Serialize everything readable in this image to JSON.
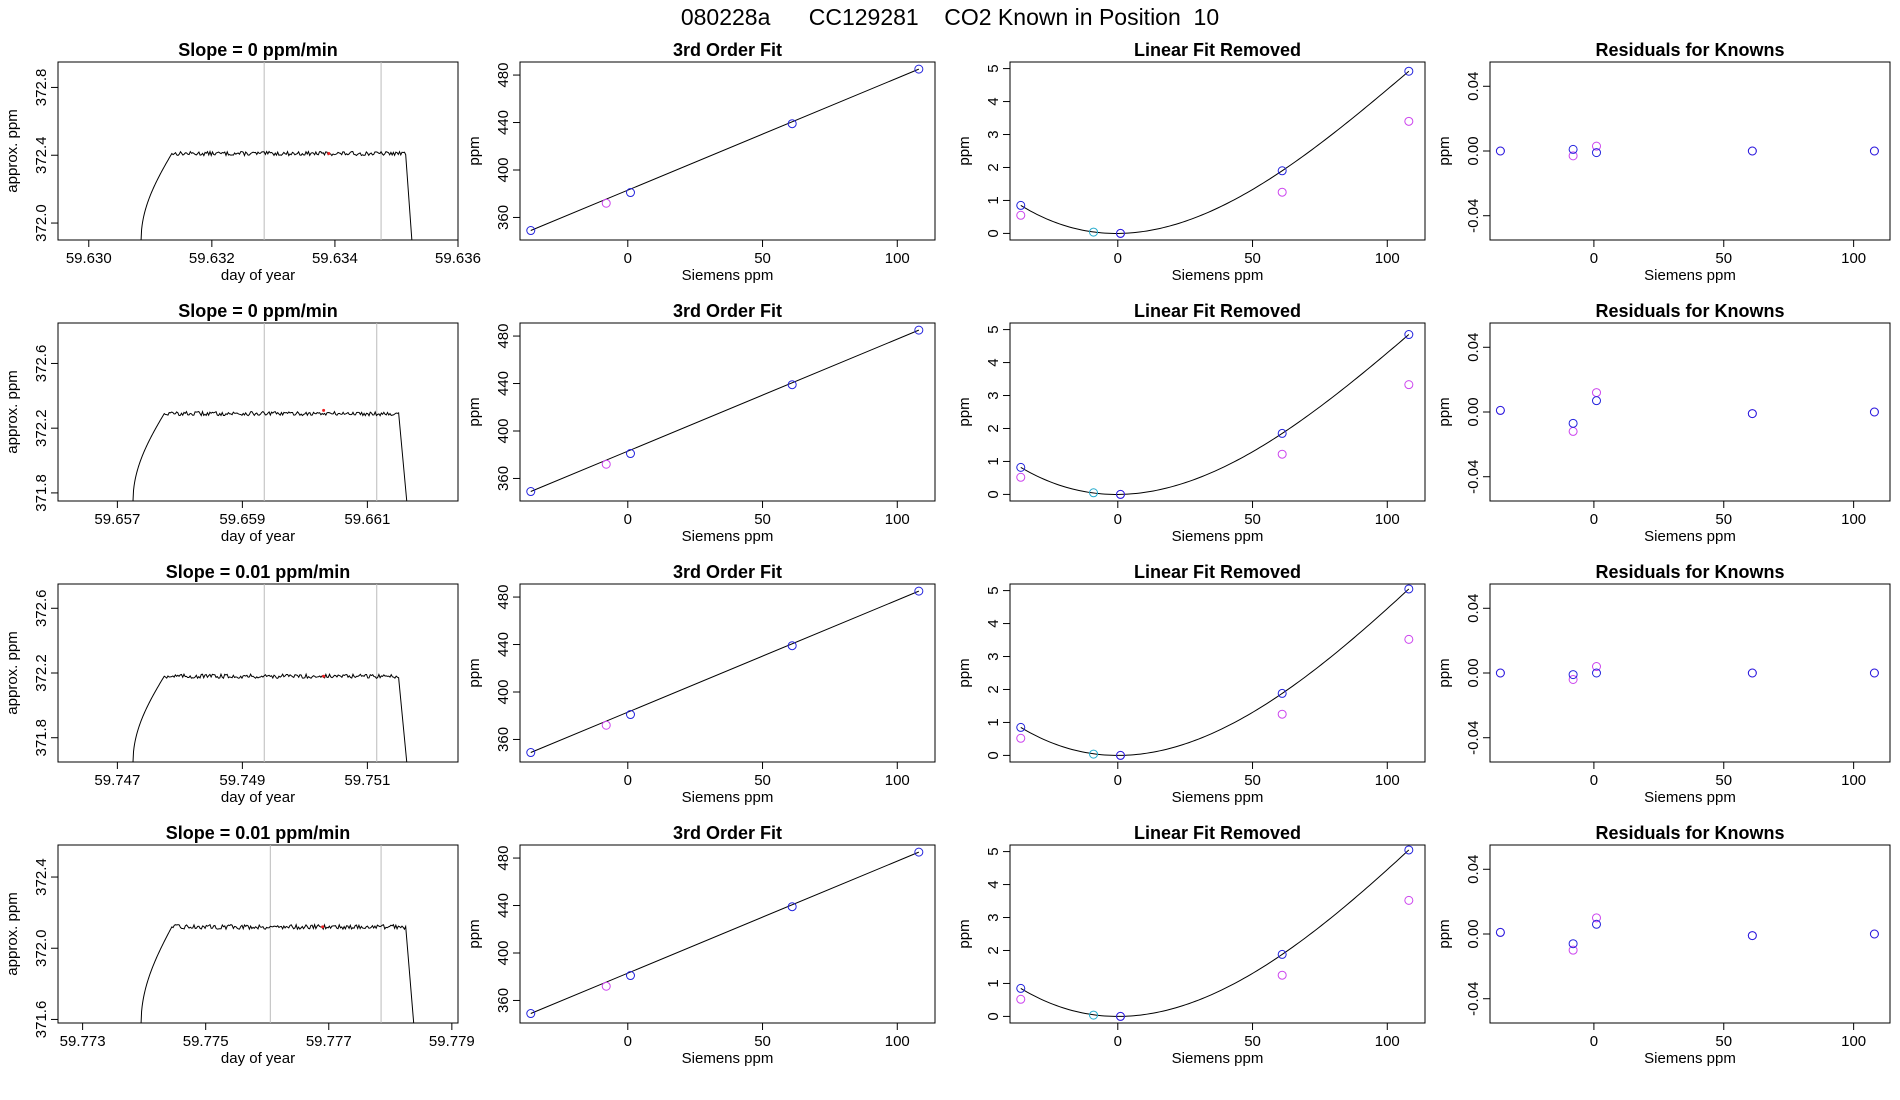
{
  "page_title": "080228a      CC129281    CO2 Known in Position  10",
  "colors": {
    "blue": "#2222dd",
    "magenta": "#cc44ee",
    "cyan": "#22aacc",
    "line": "#000000",
    "vline": "#bbbbbb",
    "red": "#ee2222"
  },
  "chart_data": [
    {
      "type": "line",
      "title": "Slope =  0  ppm/min",
      "xlabel": "day of year",
      "ylabel": "approx. ppm",
      "xlim": [
        59.6295,
        59.636
      ],
      "ylim": [
        371.9,
        372.95
      ],
      "xticks": [
        59.63,
        59.632,
        59.634,
        59.636
      ],
      "xtick_labels": [
        "59.630",
        "59.632",
        "59.634",
        "59.636"
      ],
      "yticks": [
        372.0,
        372.4,
        372.8
      ],
      "ytick_labels": [
        "372.0",
        "372.4",
        "372.8"
      ],
      "vlines": [
        59.63285,
        59.63475
      ],
      "trace": {
        "x_start": 59.63085,
        "x_rise_end": 59.63135,
        "x_drop": 59.63515,
        "x_end": 59.63525,
        "y_low": 371.9,
        "y_level": 372.41,
        "noise": 0.012
      },
      "marker": {
        "x": 59.6339,
        "y": 372.41
      }
    },
    {
      "type": "line",
      "title": "Slope =  0  ppm/min",
      "xlabel": "day of year",
      "ylabel": "approx. ppm",
      "xlim": [
        59.65605,
        59.66245
      ],
      "ylim": [
        371.75,
        372.85
      ],
      "xticks": [
        59.657,
        59.659,
        59.661
      ],
      "xtick_labels": [
        "59.657",
        "59.659",
        "59.661"
      ],
      "yticks": [
        371.8,
        372.2,
        372.6
      ],
      "ytick_labels": [
        "371.8",
        "372.2",
        "372.6"
      ],
      "vlines": [
        59.65935,
        59.66115
      ],
      "trace": {
        "x_start": 59.65725,
        "x_rise_end": 59.65775,
        "x_drop": 59.6615,
        "x_end": 59.66163,
        "y_low": 371.75,
        "y_level": 372.29,
        "noise": 0.013
      },
      "marker": {
        "x": 59.6603,
        "y": 372.31
      }
    },
    {
      "type": "line",
      "title": "Slope =  0.01  ppm/min",
      "xlabel": "day of year",
      "ylabel": "approx. ppm",
      "xlim": [
        59.74605,
        59.75245
      ],
      "ylim": [
        371.65,
        372.75
      ],
      "xticks": [
        59.747,
        59.749,
        59.751
      ],
      "xtick_labels": [
        "59.747",
        "59.749",
        "59.751"
      ],
      "yticks": [
        371.8,
        372.2,
        372.6
      ],
      "ytick_labels": [
        "371.8",
        "372.2",
        "372.6"
      ],
      "vlines": [
        59.74935,
        59.75115
      ],
      "trace": {
        "x_start": 59.74725,
        "x_rise_end": 59.74775,
        "x_drop": 59.7515,
        "x_end": 59.75163,
        "y_low": 371.65,
        "y_level": 372.18,
        "noise": 0.013
      },
      "marker": {
        "x": 59.7503,
        "y": 372.18
      }
    },
    {
      "type": "line",
      "title": "Slope =  0.01  ppm/min",
      "xlabel": "day of year",
      "ylabel": "approx. ppm",
      "xlim": [
        59.7726,
        59.7791
      ],
      "ylim": [
        371.58,
        372.58
      ],
      "xticks": [
        59.773,
        59.775,
        59.777,
        59.779
      ],
      "xtick_labels": [
        "59.773",
        "59.775",
        "59.777",
        "59.779"
      ],
      "yticks": [
        371.6,
        372.0,
        372.4
      ],
      "ytick_labels": [
        "371.6",
        "372.0",
        "372.4"
      ],
      "vlines": [
        59.77605,
        59.77785
      ],
      "trace": {
        "x_start": 59.77395,
        "x_rise_end": 59.77445,
        "x_drop": 59.77825,
        "x_end": 59.77838,
        "y_low": 371.58,
        "y_level": 372.12,
        "noise": 0.013
      },
      "marker": {
        "x": 59.7769,
        "y": 372.12
      }
    },
    {
      "type": "scatter",
      "title": "3rd Order Fit",
      "xlabel": "Siemens ppm",
      "ylabel": "ppm",
      "xlim": [
        -40,
        114
      ],
      "ylim": [
        341,
        491
      ],
      "xticks": [
        0,
        50,
        100
      ],
      "xtick_labels": [
        "0",
        "50",
        "100"
      ],
      "yticks": [
        360,
        400,
        440,
        480
      ],
      "ytick_labels": [
        "360",
        "400",
        "440",
        "480"
      ],
      "points": [
        {
          "x": -36,
          "y": 349
        },
        {
          "x": -8,
          "y": 372
        },
        {
          "x": 1,
          "y": 381
        },
        {
          "x": 61,
          "y": 439
        },
        {
          "x": 108,
          "y": 485
        }
      ],
      "open_points": [
        {
          "x": -8,
          "y": 372
        }
      ]
    },
    {
      "type": "scatter",
      "title": "3rd Order Fit",
      "xlabel": "Siemens ppm",
      "ylabel": "ppm",
      "xlim": [
        -40,
        114
      ],
      "ylim": [
        341,
        491
      ],
      "xticks": [
        0,
        50,
        100
      ],
      "xtick_labels": [
        "0",
        "50",
        "100"
      ],
      "yticks": [
        360,
        400,
        440,
        480
      ],
      "ytick_labels": [
        "360",
        "400",
        "440",
        "480"
      ],
      "points": [
        {
          "x": -36,
          "y": 349
        },
        {
          "x": -8,
          "y": 372
        },
        {
          "x": 1,
          "y": 381
        },
        {
          "x": 61,
          "y": 439
        },
        {
          "x": 108,
          "y": 485
        }
      ],
      "open_points": [
        {
          "x": -8,
          "y": 372
        }
      ]
    },
    {
      "type": "scatter",
      "title": "3rd Order Fit",
      "xlabel": "Siemens ppm",
      "ylabel": "ppm",
      "xlim": [
        -40,
        114
      ],
      "ylim": [
        341,
        491
      ],
      "xticks": [
        0,
        50,
        100
      ],
      "xtick_labels": [
        "0",
        "50",
        "100"
      ],
      "yticks": [
        360,
        400,
        440,
        480
      ],
      "ytick_labels": [
        "360",
        "400",
        "440",
        "480"
      ],
      "points": [
        {
          "x": -36,
          "y": 349
        },
        {
          "x": -8,
          "y": 372
        },
        {
          "x": 1,
          "y": 381
        },
        {
          "x": 61,
          "y": 439
        },
        {
          "x": 108,
          "y": 485
        }
      ],
      "open_points": [
        {
          "x": -8,
          "y": 372
        }
      ]
    },
    {
      "type": "scatter",
      "title": "3rd Order Fit",
      "xlabel": "Siemens ppm",
      "ylabel": "ppm",
      "xlim": [
        -40,
        114
      ],
      "ylim": [
        341,
        491
      ],
      "xticks": [
        0,
        50,
        100
      ],
      "xtick_labels": [
        "0",
        "50",
        "100"
      ],
      "yticks": [
        360,
        400,
        440,
        480
      ],
      "ytick_labels": [
        "360",
        "400",
        "440",
        "480"
      ],
      "points": [
        {
          "x": -36,
          "y": 349
        },
        {
          "x": -8,
          "y": 372
        },
        {
          "x": 1,
          "y": 381
        },
        {
          "x": 61,
          "y": 439
        },
        {
          "x": 108,
          "y": 485
        }
      ],
      "open_points": [
        {
          "x": -8,
          "y": 372
        }
      ]
    },
    {
      "type": "scatter",
      "title": "Linear Fit Removed",
      "xlabel": "Siemens ppm",
      "ylabel": "ppm",
      "xlim": [
        -40,
        114
      ],
      "ylim": [
        -0.2,
        5.2
      ],
      "xticks": [
        0,
        50,
        100
      ],
      "xtick_labels": [
        "0",
        "50",
        "100"
      ],
      "yticks": [
        0,
        1,
        2,
        3,
        4,
        5
      ],
      "ytick_labels": [
        "0",
        "1",
        "2",
        "3",
        "4",
        "5"
      ],
      "blue": [
        {
          "x": -36,
          "y": 0.85
        },
        {
          "x": 1,
          "y": 0.0
        },
        {
          "x": 61,
          "y": 1.9
        },
        {
          "x": 108,
          "y": 4.92
        }
      ],
      "cyan": [
        {
          "x": -9,
          "y": 0.04
        }
      ],
      "magenta": [
        {
          "x": -36,
          "y": 0.55
        },
        {
          "x": 1,
          "y": 0.0
        },
        {
          "x": 61,
          "y": 1.25
        },
        {
          "x": 108,
          "y": 3.4
        }
      ],
      "curve": {
        "x": [
          -36,
          1,
          61,
          108
        ],
        "y": [
          0.85,
          0.0,
          1.9,
          4.92
        ]
      }
    },
    {
      "type": "scatter",
      "title": "Linear Fit Removed",
      "xlabel": "Siemens ppm",
      "ylabel": "ppm",
      "xlim": [
        -40,
        114
      ],
      "ylim": [
        -0.2,
        5.2
      ],
      "xticks": [
        0,
        50,
        100
      ],
      "xtick_labels": [
        "0",
        "50",
        "100"
      ],
      "yticks": [
        0,
        1,
        2,
        3,
        4,
        5
      ],
      "ytick_labels": [
        "0",
        "1",
        "2",
        "3",
        "4",
        "5"
      ],
      "blue": [
        {
          "x": -36,
          "y": 0.82
        },
        {
          "x": 1,
          "y": 0.0
        },
        {
          "x": 61,
          "y": 1.85
        },
        {
          "x": 108,
          "y": 4.85
        }
      ],
      "cyan": [
        {
          "x": -9,
          "y": 0.05
        }
      ],
      "magenta": [
        {
          "x": -36,
          "y": 0.52
        },
        {
          "x": 1,
          "y": 0.0
        },
        {
          "x": 61,
          "y": 1.22
        },
        {
          "x": 108,
          "y": 3.33
        }
      ],
      "curve": {
        "x": [
          -36,
          1,
          61,
          108
        ],
        "y": [
          0.82,
          0.0,
          1.85,
          4.85
        ]
      }
    },
    {
      "type": "scatter",
      "title": "Linear Fit Removed",
      "xlabel": "Siemens ppm",
      "ylabel": "ppm",
      "xlim": [
        -40,
        114
      ],
      "ylim": [
        -0.2,
        5.2
      ],
      "xticks": [
        0,
        50,
        100
      ],
      "xtick_labels": [
        "0",
        "50",
        "100"
      ],
      "yticks": [
        0,
        1,
        2,
        3,
        4,
        5
      ],
      "ytick_labels": [
        "0",
        "1",
        "2",
        "3",
        "4",
        "5"
      ],
      "blue": [
        {
          "x": -36,
          "y": 0.85
        },
        {
          "x": 1,
          "y": 0.0
        },
        {
          "x": 61,
          "y": 1.88
        },
        {
          "x": 108,
          "y": 5.05
        }
      ],
      "cyan": [
        {
          "x": -9,
          "y": 0.04
        }
      ],
      "magenta": [
        {
          "x": -36,
          "y": 0.52
        },
        {
          "x": 1,
          "y": 0.0
        },
        {
          "x": 61,
          "y": 1.25
        },
        {
          "x": 108,
          "y": 3.52
        }
      ],
      "curve": {
        "x": [
          -36,
          1,
          61,
          108
        ],
        "y": [
          0.85,
          0.0,
          1.88,
          5.05
        ]
      }
    },
    {
      "type": "scatter",
      "title": "Linear Fit Removed",
      "xlabel": "Siemens ppm",
      "ylabel": "ppm",
      "xlim": [
        -40,
        114
      ],
      "ylim": [
        -0.2,
        5.2
      ],
      "xticks": [
        0,
        50,
        100
      ],
      "xtick_labels": [
        "0",
        "50",
        "100"
      ],
      "yticks": [
        0,
        1,
        2,
        3,
        4,
        5
      ],
      "ytick_labels": [
        "0",
        "1",
        "2",
        "3",
        "4",
        "5"
      ],
      "blue": [
        {
          "x": -36,
          "y": 0.85
        },
        {
          "x": 1,
          "y": 0.0
        },
        {
          "x": 61,
          "y": 1.88
        },
        {
          "x": 108,
          "y": 5.05
        }
      ],
      "cyan": [
        {
          "x": -9,
          "y": 0.04
        }
      ],
      "magenta": [
        {
          "x": -36,
          "y": 0.52
        },
        {
          "x": 1,
          "y": 0.0
        },
        {
          "x": 61,
          "y": 1.25
        },
        {
          "x": 108,
          "y": 3.52
        }
      ],
      "curve": {
        "x": [
          -36,
          1,
          61,
          108
        ],
        "y": [
          0.85,
          0.0,
          1.88,
          5.05
        ]
      }
    },
    {
      "type": "scatter",
      "title": "Residuals for Knowns",
      "xlabel": "Siemens ppm",
      "ylabel": "ppm",
      "xlim": [
        -40,
        114
      ],
      "ylim": [
        -0.055,
        0.055
      ],
      "xticks": [
        0,
        50,
        100
      ],
      "xtick_labels": [
        "0",
        "50",
        "100"
      ],
      "yticks": [
        -0.04,
        0.0,
        0.04
      ],
      "ytick_labels": [
        "-0.04",
        "0.00",
        "0.04"
      ],
      "blue": [
        {
          "x": -36,
          "y": 0.0
        },
        {
          "x": -8,
          "y": 0.001
        },
        {
          "x": 1,
          "y": -0.001
        },
        {
          "x": 61,
          "y": 0.0
        },
        {
          "x": 108,
          "y": 0.0
        }
      ],
      "magenta": [
        {
          "x": -36,
          "y": 0.0
        },
        {
          "x": -8,
          "y": -0.003
        },
        {
          "x": 1,
          "y": 0.003
        },
        {
          "x": 61,
          "y": 0.0
        },
        {
          "x": 108,
          "y": 0.0
        }
      ]
    },
    {
      "type": "scatter",
      "title": "Residuals for Knowns",
      "xlabel": "Siemens ppm",
      "ylabel": "ppm",
      "xlim": [
        -40,
        114
      ],
      "ylim": [
        -0.055,
        0.055
      ],
      "xticks": [
        0,
        50,
        100
      ],
      "xtick_labels": [
        "0",
        "50",
        "100"
      ],
      "yticks": [
        -0.04,
        0.0,
        0.04
      ],
      "ytick_labels": [
        "-0.04",
        "0.00",
        "0.04"
      ],
      "blue": [
        {
          "x": -36,
          "y": 0.001
        },
        {
          "x": -8,
          "y": -0.007
        },
        {
          "x": 1,
          "y": 0.007
        },
        {
          "x": 61,
          "y": -0.001
        },
        {
          "x": 108,
          "y": 0.0
        }
      ],
      "magenta": [
        {
          "x": -36,
          "y": 0.001
        },
        {
          "x": -8,
          "y": -0.012
        },
        {
          "x": 1,
          "y": 0.012
        },
        {
          "x": 61,
          "y": -0.001
        },
        {
          "x": 108,
          "y": 0.0
        }
      ]
    },
    {
      "type": "scatter",
      "title": "Residuals for Knowns",
      "xlabel": "Siemens ppm",
      "ylabel": "ppm",
      "xlim": [
        -40,
        114
      ],
      "ylim": [
        -0.055,
        0.055
      ],
      "xticks": [
        0,
        50,
        100
      ],
      "xtick_labels": [
        "0",
        "50",
        "100"
      ],
      "yticks": [
        -0.04,
        0.0,
        0.04
      ],
      "ytick_labels": [
        "-0.04",
        "0.00",
        "0.04"
      ],
      "blue": [
        {
          "x": -36,
          "y": 0.0
        },
        {
          "x": -8,
          "y": -0.001
        },
        {
          "x": 1,
          "y": 0.0
        },
        {
          "x": 61,
          "y": 0.0
        },
        {
          "x": 108,
          "y": 0.0
        }
      ],
      "magenta": [
        {
          "x": -36,
          "y": 0.0
        },
        {
          "x": -8,
          "y": -0.004
        },
        {
          "x": 1,
          "y": 0.004
        },
        {
          "x": 61,
          "y": 0.0
        },
        {
          "x": 108,
          "y": 0.0
        }
      ]
    },
    {
      "type": "scatter",
      "title": "Residuals for Knowns",
      "xlabel": "Siemens ppm",
      "ylabel": "ppm",
      "xlim": [
        -40,
        114
      ],
      "ylim": [
        -0.055,
        0.055
      ],
      "xticks": [
        0,
        50,
        100
      ],
      "xtick_labels": [
        "0",
        "50",
        "100"
      ],
      "yticks": [
        -0.04,
        0.0,
        0.04
      ],
      "ytick_labels": [
        "-0.04",
        "0.00",
        "0.04"
      ],
      "blue": [
        {
          "x": -36,
          "y": 0.001
        },
        {
          "x": -8,
          "y": -0.006
        },
        {
          "x": 1,
          "y": 0.006
        },
        {
          "x": 61,
          "y": -0.001
        },
        {
          "x": 108,
          "y": 0.0
        }
      ],
      "magenta": [
        {
          "x": -36,
          "y": 0.001
        },
        {
          "x": -8,
          "y": -0.01
        },
        {
          "x": 1,
          "y": 0.01
        },
        {
          "x": 61,
          "y": -0.001
        },
        {
          "x": 108,
          "y": 0.0
        }
      ]
    }
  ]
}
